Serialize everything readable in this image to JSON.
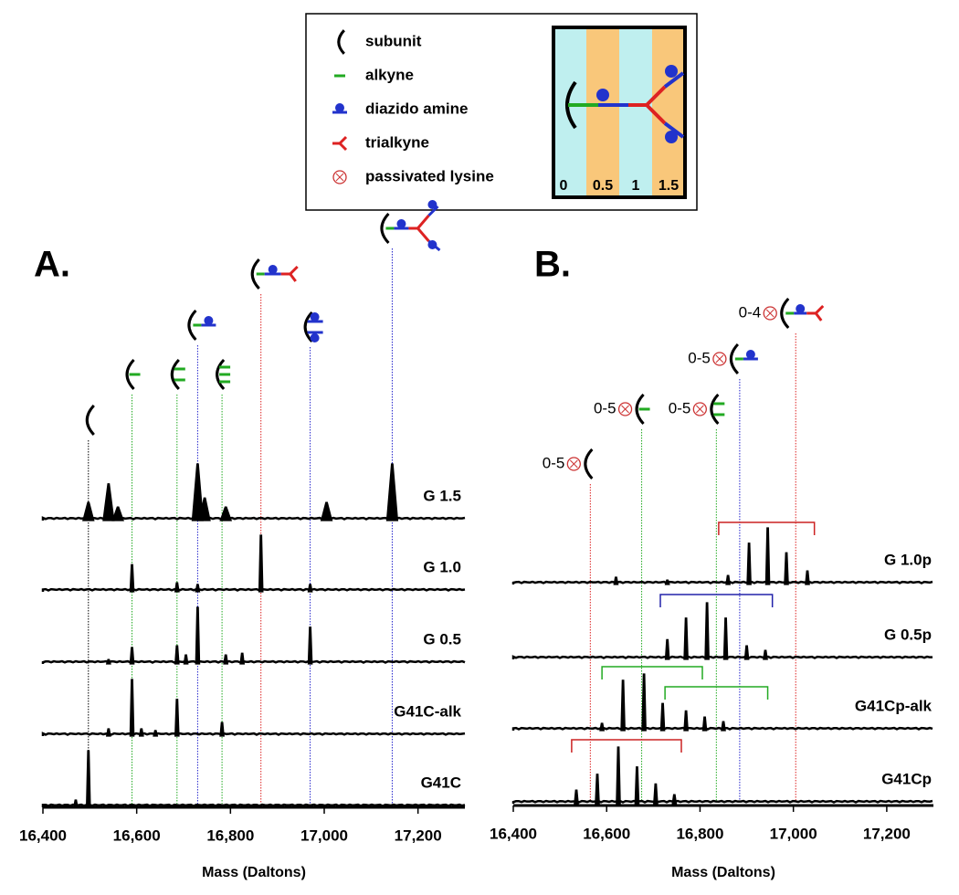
{
  "legend": {
    "items": [
      "subunit",
      "alkyne",
      "diazido amine",
      "trialkyne",
      "passivated lysine"
    ],
    "scale_labels": [
      "0",
      "0.5",
      "1",
      "1.5"
    ]
  },
  "chart_data": [
    {
      "type": "spectrum",
      "panel_label": "A.",
      "xlabel": "Mass (Daltons)",
      "xlim": [
        16400,
        17300
      ],
      "xticks": [
        {
          "value": 16400,
          "label": "16,400"
        },
        {
          "value": 16600,
          "label": "16,600"
        },
        {
          "value": 16800,
          "label": "16,800"
        },
        {
          "value": 17000,
          "label": "17,000"
        },
        {
          "value": 17200,
          "label": "17,200"
        }
      ],
      "series": [
        {
          "name": "G 1.5",
          "color": "#000000",
          "x": [
            16497,
            16540,
            16560,
            16730,
            16745,
            16790,
            17005,
            17145
          ],
          "values": [
            32,
            65,
            24,
            100,
            40,
            24,
            32,
            100
          ]
        },
        {
          "name": "G 1.0",
          "color": "#000000",
          "x": [
            16590,
            16686,
            16730,
            16865,
            16970
          ],
          "values": [
            48,
            16,
            13,
            100,
            13
          ]
        },
        {
          "name": "G 0.5",
          "color": "#000000",
          "x": [
            16540,
            16590,
            16686,
            16705,
            16730,
            16790,
            16825,
            16970
          ],
          "values": [
            8,
            29,
            32,
            16,
            100,
            16,
            19,
            65
          ]
        },
        {
          "name": "G41C-alk",
          "color": "#000000",
          "x": [
            16540,
            16590,
            16610,
            16640,
            16686,
            16782
          ],
          "values": [
            13,
            100,
            13,
            10,
            65,
            24
          ]
        },
        {
          "name": "G41C",
          "color": "#000000",
          "x": [
            16470,
            16497
          ],
          "values": [
            13,
            100
          ]
        }
      ],
      "markers": [
        {
          "x": 16497,
          "color": "#000000"
        },
        {
          "x": 16590,
          "color": "#22aa22"
        },
        {
          "x": 16686,
          "color": "#22aa22"
        },
        {
          "x": 16730,
          "color": "#2222cc"
        },
        {
          "x": 16782,
          "color": "#22aa22"
        },
        {
          "x": 16865,
          "color": "#dd2222"
        },
        {
          "x": 16970,
          "color": "#2222cc"
        },
        {
          "x": 17145,
          "color": "#2222cc"
        }
      ]
    },
    {
      "type": "spectrum",
      "panel_label": "B.",
      "xlabel": "Mass (Daltons)",
      "xlim": [
        16400,
        17300
      ],
      "xticks": [
        {
          "value": 16400,
          "label": "16,400"
        },
        {
          "value": 16600,
          "label": "16,600"
        },
        {
          "value": 16800,
          "label": "16,800"
        },
        {
          "value": 17000,
          "label": "17,000"
        },
        {
          "value": 17200,
          "label": "17,200"
        }
      ],
      "series": [
        {
          "name": "G 1.0p",
          "color": "#000000",
          "x": [
            16620,
            16730,
            16860,
            16905,
            16945,
            16985,
            17030
          ],
          "values": [
            13,
            8,
            16,
            73,
            100,
            56,
            24
          ]
        },
        {
          "name": "G 0.5p",
          "color": "#000000",
          "x": [
            16730,
            16770,
            16815,
            16855,
            16900,
            16940
          ],
          "values": [
            35,
            73,
            100,
            73,
            24,
            16
          ]
        },
        {
          "name": "G41Cp-alk",
          "color": "#000000",
          "x": [
            16590,
            16635,
            16680,
            16720,
            16770,
            16810,
            16850
          ],
          "values": [
            13,
            89,
            100,
            48,
            35,
            24,
            16
          ]
        },
        {
          "name": "G41Cp",
          "color": "#000000",
          "x": [
            16535,
            16580,
            16625,
            16665,
            16705,
            16745
          ],
          "values": [
            24,
            52,
            100,
            65,
            35,
            16
          ]
        }
      ],
      "markers": [
        {
          "x": 16565,
          "color": "#dd2222",
          "label": "0-5"
        },
        {
          "x": 16675,
          "color": "#22aa22",
          "label": "0-5"
        },
        {
          "x": 16835,
          "color": "#22aa22",
          "label": "0-5"
        },
        {
          "x": 16885,
          "color": "#2222cc",
          "label": "0-5"
        },
        {
          "x": 17005,
          "color": "#dd2222",
          "label": "0-4"
        }
      ],
      "brackets": [
        {
          "range": [
            16840,
            17045
          ],
          "color": "#cc2222"
        },
        {
          "range": [
            16715,
            16955
          ],
          "color": "#2222aa"
        },
        {
          "range": [
            16590,
            16805
          ],
          "color": "#22aa22"
        },
        {
          "range": [
            16725,
            16945
          ],
          "color": "#22aa22"
        },
        {
          "range": [
            16525,
            16760
          ],
          "color": "#cc2222"
        }
      ]
    }
  ]
}
